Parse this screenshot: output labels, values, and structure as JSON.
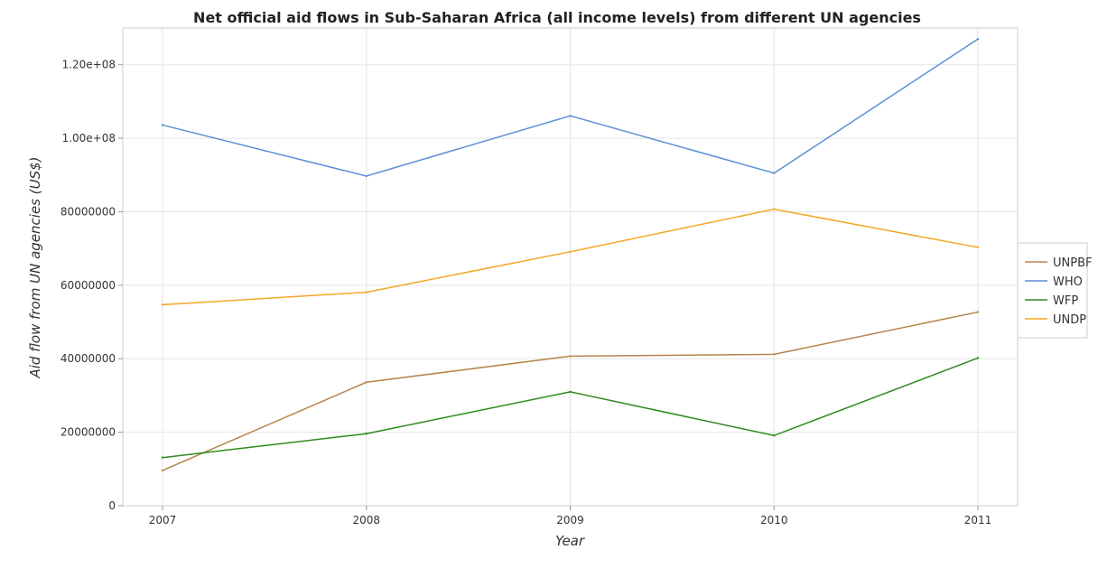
{
  "chart_data": {
    "type": "line",
    "title": "Net official aid flows in Sub-Saharan Africa (all income levels) from different UN agencies",
    "xlabel": "Year",
    "ylabel": "Aid flow from UN agencies (US$)",
    "categories": [
      "2007",
      "2008",
      "2009",
      "2010",
      "2011"
    ],
    "ylim": [
      0,
      130000000
    ],
    "yticks": [
      0,
      20000000,
      40000000,
      60000000,
      80000000,
      100000000,
      120000000
    ],
    "ytick_labels": [
      "0",
      "20000000",
      "40000000",
      "60000000",
      "80000000",
      "1.00e+08",
      "1.20e+08"
    ],
    "grid": true,
    "legend_position": "right",
    "series": [
      {
        "name": "UNPBF",
        "color": "#b5854b",
        "values": [
          9600000,
          33600000,
          40700000,
          41200000,
          52700000
        ]
      },
      {
        "name": "WHO",
        "color": "#5b8fd6",
        "values": [
          103600000,
          89700000,
          106100000,
          90500000,
          127000000
        ]
      },
      {
        "name": "WFP",
        "color": "#2e8b1e",
        "values": [
          13100000,
          19600000,
          31000000,
          19100000,
          40200000
        ]
      },
      {
        "name": "UNDP",
        "color": "#f5a623",
        "values": [
          54700000,
          58100000,
          69100000,
          80700000,
          70300000
        ]
      }
    ]
  }
}
